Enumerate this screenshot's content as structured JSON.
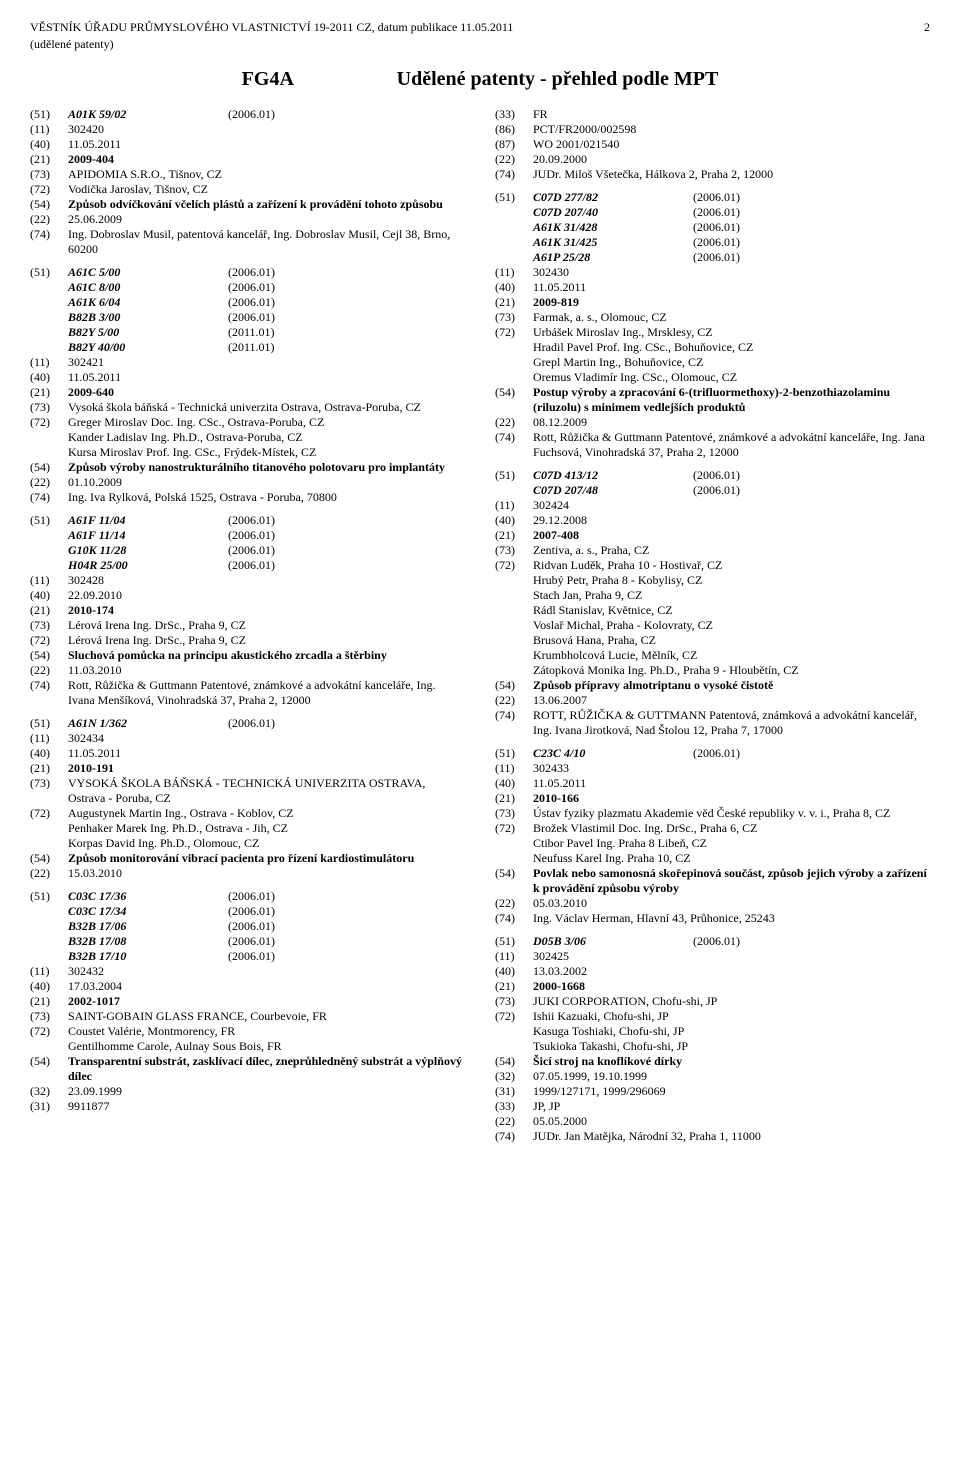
{
  "header": {
    "line1": "VĚSTNÍK ÚŘADU PRŮMYSLOVÉHO VLASTNICTVÍ 19-2011 CZ, datum publikace 11.05.2011",
    "line2": "(udělené patenty)",
    "pageNum": "2"
  },
  "title": {
    "code": "FG4A",
    "text": "Udělené patenty - přehled podle MPT"
  },
  "left": [
    {
      "type": "ipc",
      "code": "(51)",
      "cls": "A01K 59/02",
      "yr": "(2006.01)"
    },
    {
      "code": "(11)",
      "val": "302420"
    },
    {
      "code": "(40)",
      "val": "11.05.2011"
    },
    {
      "code": "(21)",
      "val": "2009-404",
      "bold": true
    },
    {
      "code": "(73)",
      "val": "APIDOMIA S.R.O., Tišnov, CZ"
    },
    {
      "code": "(72)",
      "val": "Vodička Jaroslav, Tišnov, CZ"
    },
    {
      "code": "(54)",
      "val": "Způsob odvíčkování včelích plástů a zařízení k provádění tohoto způsobu",
      "bold": true
    },
    {
      "code": "(22)",
      "val": "25.06.2009"
    },
    {
      "code": "(74)",
      "val": "Ing. Dobroslav Musil, patentová kancelář, Ing. Dobroslav Musil, Cejl 38, Brno, 60200"
    },
    {
      "type": "sep"
    },
    {
      "type": "ipc",
      "code": "(51)",
      "cls": "A61C 5/00",
      "yr": "(2006.01)"
    },
    {
      "type": "ipc",
      "code": "",
      "cls": "A61C 8/00",
      "yr": "(2006.01)"
    },
    {
      "type": "ipc",
      "code": "",
      "cls": "A61K 6/04",
      "yr": "(2006.01)"
    },
    {
      "type": "ipc",
      "code": "",
      "cls": "B82B 3/00",
      "yr": "(2006.01)"
    },
    {
      "type": "ipc",
      "code": "",
      "cls": "B82Y 5/00",
      "yr": "(2011.01)"
    },
    {
      "type": "ipc",
      "code": "",
      "cls": "B82Y 40/00",
      "yr": "(2011.01)"
    },
    {
      "code": "(11)",
      "val": "302421"
    },
    {
      "code": "(40)",
      "val": "11.05.2011"
    },
    {
      "code": "(21)",
      "val": "2009-640",
      "bold": true
    },
    {
      "code": "(73)",
      "val": "Vysoká škola báňská - Technická univerzita Ostrava, Ostrava-Poruba, CZ"
    },
    {
      "code": "(72)",
      "val": "Greger Miroslav Doc. Ing. CSc., Ostrava-Poruba, CZ\nKander Ladislav Ing. Ph.D., Ostrava-Poruba, CZ\nKursa Miroslav Prof. Ing. CSc., Frýdek-Místek, CZ"
    },
    {
      "code": "(54)",
      "val": "Způsob výroby nanostrukturálního titanového polotovaru pro implantáty",
      "bold": true
    },
    {
      "code": "(22)",
      "val": "01.10.2009"
    },
    {
      "code": "(74)",
      "val": "Ing. Iva Rylková, Polská 1525, Ostrava - Poruba, 70800"
    },
    {
      "type": "sep"
    },
    {
      "type": "ipc",
      "code": "(51)",
      "cls": "A61F 11/04",
      "yr": "(2006.01)"
    },
    {
      "type": "ipc",
      "code": "",
      "cls": "A61F 11/14",
      "yr": "(2006.01)"
    },
    {
      "type": "ipc",
      "code": "",
      "cls": "G10K 11/28",
      "yr": "(2006.01)"
    },
    {
      "type": "ipc",
      "code": "",
      "cls": "H04R 25/00",
      "yr": "(2006.01)"
    },
    {
      "code": "(11)",
      "val": "302428"
    },
    {
      "code": "(40)",
      "val": "22.09.2010"
    },
    {
      "code": "(21)",
      "val": "2010-174",
      "bold": true
    },
    {
      "code": "(73)",
      "val": "Lérová Irena Ing. DrSc., Praha 9, CZ"
    },
    {
      "code": "(72)",
      "val": "Lérová Irena Ing. DrSc., Praha 9, CZ"
    },
    {
      "code": "(54)",
      "val": "Sluchová pomůcka na principu akustického zrcadla a štěrbiny",
      "bold": true
    },
    {
      "code": "(22)",
      "val": "11.03.2010"
    },
    {
      "code": "(74)",
      "val": "Rott, Růžička & Guttmann Patentové, známkové a advokátní kanceláře, Ing. Ivana Menšíková, Vinohradská 37, Praha 2, 12000"
    },
    {
      "type": "sep"
    },
    {
      "type": "ipc",
      "code": "(51)",
      "cls": "A61N 1/362",
      "yr": "(2006.01)"
    },
    {
      "code": "(11)",
      "val": "302434"
    },
    {
      "code": "(40)",
      "val": "11.05.2011"
    },
    {
      "code": "(21)",
      "val": "2010-191",
      "bold": true
    },
    {
      "code": "(73)",
      "val": "VYSOKÁ ŠKOLA BÁŇSKÁ - TECHNICKÁ UNIVERZITA OSTRAVA, Ostrava - Poruba, CZ"
    },
    {
      "code": "(72)",
      "val": "Augustynek Martin Ing., Ostrava - Koblov, CZ\nPenhaker Marek Ing. Ph.D., Ostrava - Jih, CZ\nKorpas David Ing. Ph.D., Olomouc, CZ"
    },
    {
      "code": "(54)",
      "val": "Způsob monitorování vibrací pacienta pro řízení kardiostimulátoru",
      "bold": true
    },
    {
      "code": "(22)",
      "val": "15.03.2010"
    },
    {
      "type": "sep"
    },
    {
      "type": "ipc",
      "code": "(51)",
      "cls": "C03C 17/36",
      "yr": "(2006.01)"
    },
    {
      "type": "ipc",
      "code": "",
      "cls": "C03C 17/34",
      "yr": "(2006.01)"
    },
    {
      "type": "ipc",
      "code": "",
      "cls": "B32B 17/06",
      "yr": "(2006.01)"
    },
    {
      "type": "ipc",
      "code": "",
      "cls": "B32B 17/08",
      "yr": "(2006.01)"
    },
    {
      "type": "ipc",
      "code": "",
      "cls": "B32B 17/10",
      "yr": "(2006.01)"
    },
    {
      "code": "(11)",
      "val": "302432"
    },
    {
      "code": "(40)",
      "val": "17.03.2004"
    },
    {
      "code": "(21)",
      "val": "2002-1017",
      "bold": true
    },
    {
      "code": "(73)",
      "val": "SAINT-GOBAIN GLASS FRANCE, Courbevoie, FR"
    },
    {
      "code": "(72)",
      "val": "Coustet Valérie, Montmorency, FR\nGentilhomme Carole, Aulnay Sous Bois, FR"
    },
    {
      "code": "(54)",
      "val": "Transparentní substrát, zasklívací dílec, zneprůhledněný substrát a výplňový dílec",
      "bold": true
    },
    {
      "code": "(32)",
      "val": "23.09.1999"
    },
    {
      "code": "(31)",
      "val": "9911877"
    }
  ],
  "right": [
    {
      "code": "(33)",
      "val": "FR"
    },
    {
      "code": "(86)",
      "val": "PCT/FR2000/002598"
    },
    {
      "code": "(87)",
      "val": "WO 2001/021540"
    },
    {
      "code": "(22)",
      "val": "20.09.2000"
    },
    {
      "code": "(74)",
      "val": "JUDr. Miloš Všetečka, Hálkova 2, Praha 2, 12000"
    },
    {
      "type": "sep"
    },
    {
      "type": "ipc",
      "code": "(51)",
      "cls": "C07D 277/82",
      "yr": "(2006.01)"
    },
    {
      "type": "ipc",
      "code": "",
      "cls": "C07D 207/40",
      "yr": "(2006.01)"
    },
    {
      "type": "ipc",
      "code": "",
      "cls": "A61K 31/428",
      "yr": "(2006.01)"
    },
    {
      "type": "ipc",
      "code": "",
      "cls": "A61K 31/425",
      "yr": "(2006.01)"
    },
    {
      "type": "ipc",
      "code": "",
      "cls": "A61P 25/28",
      "yr": "(2006.01)"
    },
    {
      "code": "(11)",
      "val": "302430"
    },
    {
      "code": "(40)",
      "val": "11.05.2011"
    },
    {
      "code": "(21)",
      "val": "2009-819",
      "bold": true
    },
    {
      "code": "(73)",
      "val": "Farmak, a. s., Olomouc, CZ"
    },
    {
      "code": "(72)",
      "val": "Urbášek Miroslav Ing., Mrsklesy, CZ\nHradil Pavel Prof. Ing. CSc., Bohuňovice, CZ\nGrepl Martin Ing., Bohuňovice, CZ\nOremus Vladimír Ing. CSc., Olomouc, CZ"
    },
    {
      "code": "(54)",
      "val": "Postup výroby a zpracování 6-(trifluormethoxy)-2-benzothiazolaminu (riluzolu) s minimem vedlejších produktů",
      "bold": true
    },
    {
      "code": "(22)",
      "val": "08.12.2009"
    },
    {
      "code": "(74)",
      "val": "Rott, Růžička & Guttmann Patentové, známkové a advokátní kanceláře, Ing. Jana Fuchsová, Vinohradská 37, Praha 2, 12000"
    },
    {
      "type": "sep"
    },
    {
      "type": "ipc",
      "code": "(51)",
      "cls": "C07D 413/12",
      "yr": "(2006.01)"
    },
    {
      "type": "ipc",
      "code": "",
      "cls": "C07D 207/48",
      "yr": "(2006.01)"
    },
    {
      "code": "(11)",
      "val": "302424"
    },
    {
      "code": "(40)",
      "val": "29.12.2008"
    },
    {
      "code": "(21)",
      "val": "2007-408",
      "bold": true
    },
    {
      "code": "(73)",
      "val": "Zentiva, a. s., Praha, CZ"
    },
    {
      "code": "(72)",
      "val": "Ridvan Luděk, Praha 10 - Hostivař, CZ\nHrubý Petr, Praha 8 - Kobylisy, CZ\nStach Jan, Praha 9, CZ\nRádl Stanislav, Květnice, CZ\nVoslař Michal, Praha - Kolovraty, CZ\nBrusová Hana, Praha, CZ\nKrumbholcová Lucie, Mělník, CZ\nZátopková Monika Ing. Ph.D., Praha 9 - Hloubětín, CZ"
    },
    {
      "code": "(54)",
      "val": "Způsob přípravy almotriptanu o vysoké čistotě",
      "bold": true
    },
    {
      "code": "(22)",
      "val": "13.06.2007"
    },
    {
      "code": "(74)",
      "val": "ROTT, RŮŽIČKA & GUTTMANN Patentová, známková a advokátní kancelář, Ing. Ivana Jirotková, Nad Štolou 12, Praha 7, 17000"
    },
    {
      "type": "sep"
    },
    {
      "type": "ipc",
      "code": "(51)",
      "cls": "C23C 4/10",
      "yr": "(2006.01)"
    },
    {
      "code": "(11)",
      "val": "302433"
    },
    {
      "code": "(40)",
      "val": "11.05.2011"
    },
    {
      "code": "(21)",
      "val": "2010-166",
      "bold": true
    },
    {
      "code": "(73)",
      "val": "Ústav fyziky plazmatu Akademie věd České republiky v. v. i., Praha 8, CZ"
    },
    {
      "code": "(72)",
      "val": "Brožek Vlastimil Doc. Ing. DrSc., Praha 6, CZ\nCtibor Pavel Ing. Praha 8 Libeň, CZ\nNeufuss Karel Ing. Praha 10, CZ"
    },
    {
      "code": "(54)",
      "val": "Povlak nebo samonosná skořepinová součást, způsob jejich výroby a zařízení k provádění způsobu výroby",
      "bold": true
    },
    {
      "code": "(22)",
      "val": "05.03.2010"
    },
    {
      "code": "(74)",
      "val": "Ing. Václav Herman, Hlavní 43, Průhonice, 25243"
    },
    {
      "type": "sep"
    },
    {
      "type": "ipc",
      "code": "(51)",
      "cls": "D05B 3/06",
      "yr": "(2006.01)"
    },
    {
      "code": "(11)",
      "val": "302425"
    },
    {
      "code": "(40)",
      "val": "13.03.2002"
    },
    {
      "code": "(21)",
      "val": "2000-1668",
      "bold": true
    },
    {
      "code": "(73)",
      "val": "JUKI CORPORATION, Chofu-shi, JP"
    },
    {
      "code": "(72)",
      "val": "Ishii Kazuaki, Chofu-shi, JP\nKasuga Toshiaki, Chofu-shi, JP\nTsukioka Takashi, Chofu-shi, JP"
    },
    {
      "code": "(54)",
      "val": "Šicí stroj na knoflíkové dírky",
      "bold": true
    },
    {
      "code": "(32)",
      "val": "07.05.1999, 19.10.1999"
    },
    {
      "code": "(31)",
      "val": "1999/127171, 1999/296069"
    },
    {
      "code": "(33)",
      "val": "JP, JP"
    },
    {
      "code": "(22)",
      "val": "05.05.2000"
    },
    {
      "code": "(74)",
      "val": "JUDr. Jan Matějka, Národní 32, Praha 1, 11000"
    }
  ]
}
